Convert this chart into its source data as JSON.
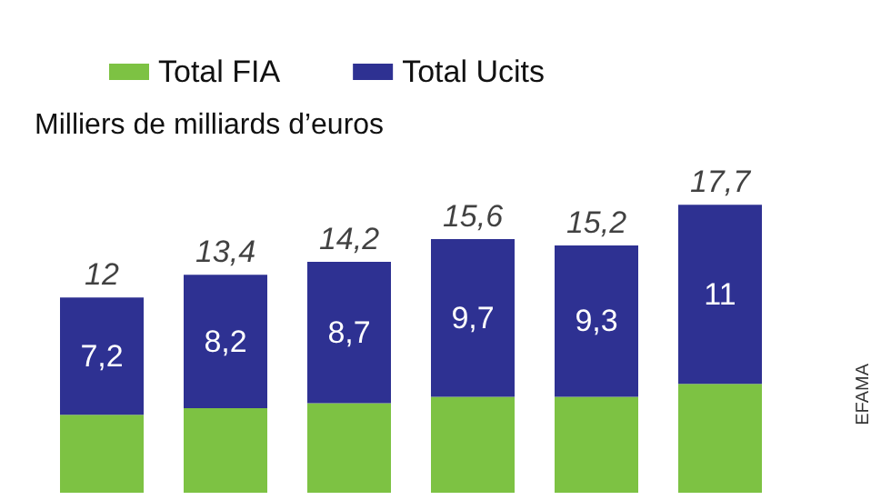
{
  "chart_data": {
    "type": "bar",
    "subtitle": "Milliers de milliards d’euros",
    "categories": [
      null,
      null,
      null,
      null,
      null,
      null
    ],
    "stacked": true,
    "legend": "top",
    "series": [
      {
        "name": "Total FIA",
        "color": "#7dc243",
        "values": [
          4.8,
          5.2,
          5.5,
          5.9,
          5.9,
          6.7
        ]
      },
      {
        "name": "Total Ucits",
        "color": "#2e3192",
        "values": [
          7.2,
          8.2,
          8.7,
          9.7,
          9.3,
          11
        ],
        "value_labels": [
          "7,2",
          "8,2",
          "8,7",
          "9,7",
          "9,3",
          "11"
        ]
      }
    ],
    "totals": [
      "12",
      "13,4",
      "14,2",
      "15,6",
      "15,2",
      "17,7"
    ],
    "annotations": [
      "EFAMA"
    ]
  }
}
